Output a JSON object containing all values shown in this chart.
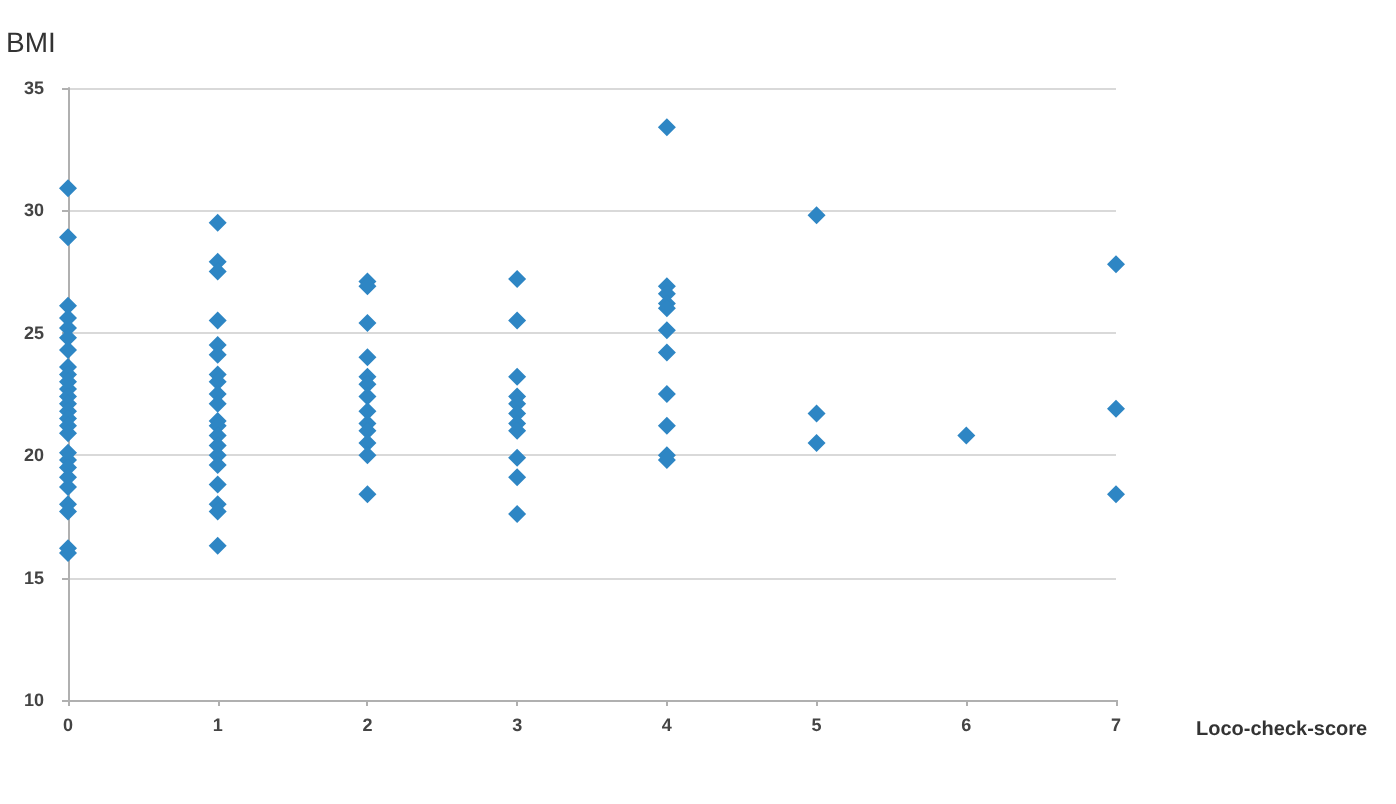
{
  "chart_data": {
    "type": "scatter",
    "xlabel": "Loco-check-score",
    "ylabel": "BMI",
    "xlim": [
      0,
      7
    ],
    "xticks": [
      0,
      1,
      2,
      3,
      4,
      5,
      6,
      7
    ],
    "ylim": [
      10,
      35
    ],
    "yticks": [
      10,
      15,
      20,
      25,
      30,
      35
    ],
    "grid": "y",
    "marker": "diamond",
    "series": [
      {
        "color": "#2e86c4",
        "x": [
          0,
          0,
          0,
          0,
          0,
          0,
          0,
          0,
          0,
          0,
          0,
          0,
          0,
          0,
          0,
          0,
          0,
          0,
          0,
          0,
          0,
          0,
          0,
          0,
          0,
          0,
          1,
          1,
          1,
          1,
          1,
          1,
          1,
          1,
          1,
          1,
          1,
          1,
          1,
          1,
          1,
          1,
          1,
          1,
          1,
          1,
          2,
          2,
          2,
          2,
          2,
          2,
          2,
          2,
          2,
          2,
          2,
          2,
          2,
          3,
          3,
          3,
          3,
          3,
          3,
          3,
          3,
          3,
          3,
          3,
          4,
          4,
          4,
          4,
          4,
          4,
          4,
          4,
          4,
          4,
          4,
          5,
          5,
          5,
          6,
          7,
          7,
          7
        ],
        "values": [
          30.9,
          28.9,
          26.1,
          25.6,
          25.2,
          24.8,
          24.3,
          23.6,
          23.3,
          23.0,
          22.7,
          22.4,
          22.1,
          21.8,
          21.5,
          21.2,
          20.9,
          20.1,
          19.8,
          19.5,
          19.1,
          18.7,
          18.0,
          17.7,
          16.2,
          16.0,
          29.5,
          27.9,
          27.5,
          25.5,
          24.5,
          24.1,
          23.3,
          23.0,
          22.5,
          22.1,
          21.4,
          21.2,
          20.8,
          20.4,
          20.0,
          19.6,
          18.8,
          18.0,
          17.7,
          16.3,
          27.1,
          26.9,
          25.4,
          24.0,
          23.2,
          22.9,
          22.4,
          21.8,
          21.3,
          21.0,
          20.5,
          20.0,
          18.4,
          27.2,
          25.5,
          23.2,
          22.4,
          22.1,
          21.7,
          21.3,
          21.0,
          19.9,
          19.1,
          17.6,
          33.4,
          26.9,
          26.6,
          26.2,
          26.0,
          25.1,
          24.2,
          22.5,
          21.2,
          20.0,
          19.8,
          29.8,
          21.7,
          20.5,
          20.8,
          27.8,
          21.9,
          18.4
        ]
      }
    ]
  }
}
